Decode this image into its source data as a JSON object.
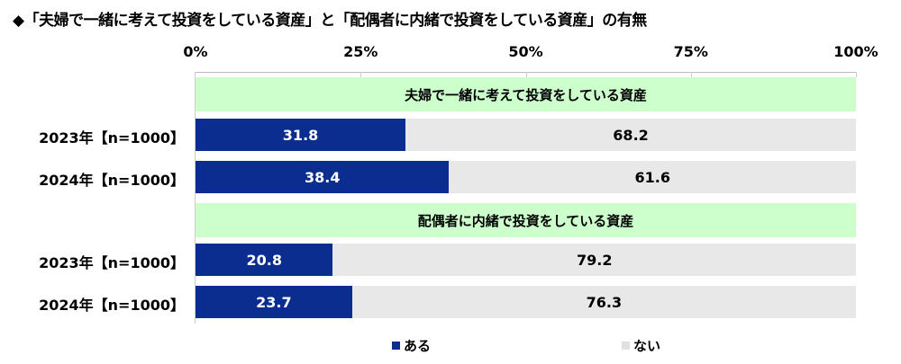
{
  "chart_data": {
    "type": "bar",
    "stacked": true,
    "orientation": "horizontal",
    "title": "◆「夫婦で一緒に考えて投資をしている資産」と「配偶者に内緒で投資をしている資産」の有無",
    "xticks": [
      "0%",
      "25%",
      "50%",
      "75%",
      "100%"
    ],
    "xlim": [
      0,
      100
    ],
    "legend_position": "bottom",
    "series": [
      {
        "name": "ある",
        "color": "#0a2d8f"
      },
      {
        "name": "ない",
        "color": "#e8e8e8"
      }
    ],
    "groups": [
      {
        "title": "夫婦で一緒に考えて投資をしている資産",
        "rows": [
          {
            "label": "2023年【n=1000】",
            "values": [
              31.8,
              68.2
            ],
            "labels": [
              "31.8",
              "68.2"
            ]
          },
          {
            "label": "2024年【n=1000】",
            "values": [
              38.4,
              61.6
            ],
            "labels": [
              "38.4",
              "61.6"
            ]
          }
        ]
      },
      {
        "title": "配偶者に内緒で投資をしている資産",
        "rows": [
          {
            "label": "2023年【n=1000】",
            "values": [
              20.8,
              79.2
            ],
            "labels": [
              "20.8",
              "79.2"
            ]
          },
          {
            "label": "2024年【n=1000】",
            "values": [
              23.7,
              76.3
            ],
            "labels": [
              "23.7",
              "76.3"
            ]
          }
        ]
      }
    ]
  }
}
